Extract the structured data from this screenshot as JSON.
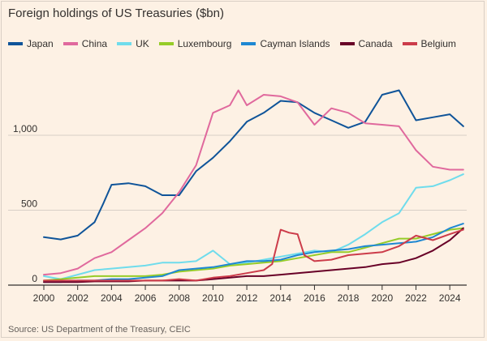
{
  "chart_data": {
    "type": "line",
    "title": "Foreign holdings of US Treasuries ($bn)",
    "source": "Source: US Department of the Treasury, CEIC",
    "xlabel": "",
    "ylabel": "",
    "xlim": [
      2000,
      2025
    ],
    "ylim": [
      0,
      1000
    ],
    "x_ticks": [
      2000,
      2002,
      2004,
      2006,
      2008,
      2010,
      2012,
      2014,
      2016,
      2018,
      2020,
      2022,
      2024
    ],
    "y_ticks": [
      0,
      500,
      1000
    ],
    "y_tick_labels": [
      "0",
      "500",
      "1,000"
    ],
    "grid": true,
    "legend_position": "top-left",
    "series": [
      {
        "name": "Japan",
        "color": "#0f5499",
        "points": [
          [
            2000,
            320
          ],
          [
            2001,
            305
          ],
          [
            2002,
            330
          ],
          [
            2003,
            420
          ],
          [
            2003.5,
            540
          ],
          [
            2004,
            670
          ],
          [
            2005,
            680
          ],
          [
            2006,
            660
          ],
          [
            2007,
            600
          ],
          [
            2008,
            600
          ],
          [
            2009,
            760
          ],
          [
            2010,
            850
          ],
          [
            2011,
            960
          ],
          [
            2012,
            1090
          ],
          [
            2013,
            1150
          ],
          [
            2014,
            1230
          ],
          [
            2015,
            1220
          ],
          [
            2016,
            1150
          ],
          [
            2017,
            1100
          ],
          [
            2018,
            1050
          ],
          [
            2019,
            1090
          ],
          [
            2020,
            1270
          ],
          [
            2021,
            1300
          ],
          [
            2022,
            1100
          ],
          [
            2023,
            1120
          ],
          [
            2024,
            1140
          ],
          [
            2024.8,
            1060
          ]
        ]
      },
      {
        "name": "China",
        "color": "#e0699d",
        "points": [
          [
            2000,
            70
          ],
          [
            2001,
            80
          ],
          [
            2002,
            110
          ],
          [
            2003,
            180
          ],
          [
            2004,
            220
          ],
          [
            2005,
            300
          ],
          [
            2006,
            380
          ],
          [
            2007,
            480
          ],
          [
            2008,
            620
          ],
          [
            2009,
            800
          ],
          [
            2010,
            1150
          ],
          [
            2011,
            1200
          ],
          [
            2011.5,
            1300
          ],
          [
            2012,
            1200
          ],
          [
            2013,
            1270
          ],
          [
            2014,
            1260
          ],
          [
            2015,
            1220
          ],
          [
            2016,
            1070
          ],
          [
            2017,
            1180
          ],
          [
            2018,
            1150
          ],
          [
            2019,
            1080
          ],
          [
            2020,
            1070
          ],
          [
            2021,
            1060
          ],
          [
            2022,
            900
          ],
          [
            2023,
            790
          ],
          [
            2024,
            770
          ],
          [
            2024.8,
            770
          ]
        ]
      },
      {
        "name": "UK",
        "color": "#6fdcec",
        "points": [
          [
            2000,
            60
          ],
          [
            2001,
            40
          ],
          [
            2002,
            70
          ],
          [
            2003,
            100
          ],
          [
            2004,
            110
          ],
          [
            2005,
            120
          ],
          [
            2006,
            130
          ],
          [
            2007,
            150
          ],
          [
            2008,
            150
          ],
          [
            2009,
            160
          ],
          [
            2010,
            230
          ],
          [
            2011,
            140
          ],
          [
            2012,
            150
          ],
          [
            2013,
            170
          ],
          [
            2014,
            190
          ],
          [
            2015,
            210
          ],
          [
            2016,
            230
          ],
          [
            2017,
            220
          ],
          [
            2018,
            270
          ],
          [
            2019,
            340
          ],
          [
            2020,
            420
          ],
          [
            2021,
            480
          ],
          [
            2022,
            650
          ],
          [
            2023,
            660
          ],
          [
            2024,
            700
          ],
          [
            2024.8,
            740
          ]
        ]
      },
      {
        "name": "Luxembourg",
        "color": "#96cc28",
        "points": [
          [
            2000,
            30
          ],
          [
            2001,
            40
          ],
          [
            2002,
            50
          ],
          [
            2003,
            60
          ],
          [
            2004,
            60
          ],
          [
            2005,
            60
          ],
          [
            2006,
            60
          ],
          [
            2007,
            70
          ],
          [
            2008,
            90
          ],
          [
            2009,
            100
          ],
          [
            2010,
            110
          ],
          [
            2011,
            130
          ],
          [
            2012,
            140
          ],
          [
            2013,
            150
          ],
          [
            2014,
            160
          ],
          [
            2015,
            180
          ],
          [
            2016,
            200
          ],
          [
            2017,
            220
          ],
          [
            2018,
            220
          ],
          [
            2019,
            250
          ],
          [
            2020,
            280
          ],
          [
            2021,
            310
          ],
          [
            2022,
            310
          ],
          [
            2023,
            340
          ],
          [
            2024,
            370
          ],
          [
            2024.8,
            380
          ]
        ]
      },
      {
        "name": "Cayman Islands",
        "color": "#1e88d2",
        "points": [
          [
            2000,
            20
          ],
          [
            2001,
            20
          ],
          [
            2002,
            30
          ],
          [
            2003,
            30
          ],
          [
            2004,
            40
          ],
          [
            2005,
            40
          ],
          [
            2006,
            50
          ],
          [
            2007,
            60
          ],
          [
            2008,
            100
          ],
          [
            2009,
            110
          ],
          [
            2010,
            120
          ],
          [
            2011,
            140
          ],
          [
            2012,
            160
          ],
          [
            2013,
            160
          ],
          [
            2014,
            170
          ],
          [
            2015,
            200
          ],
          [
            2016,
            220
          ],
          [
            2017,
            230
          ],
          [
            2018,
            240
          ],
          [
            2019,
            260
          ],
          [
            2020,
            270
          ],
          [
            2021,
            280
          ],
          [
            2022,
            290
          ],
          [
            2023,
            320
          ],
          [
            2024,
            380
          ],
          [
            2024.8,
            410
          ]
        ]
      },
      {
        "name": "Canada",
        "color": "#680027",
        "points": [
          [
            2000,
            20
          ],
          [
            2001,
            20
          ],
          [
            2002,
            20
          ],
          [
            2003,
            25
          ],
          [
            2004,
            25
          ],
          [
            2005,
            25
          ],
          [
            2006,
            30
          ],
          [
            2007,
            30
          ],
          [
            2008,
            30
          ],
          [
            2009,
            30
          ],
          [
            2010,
            40
          ],
          [
            2011,
            50
          ],
          [
            2012,
            60
          ],
          [
            2013,
            60
          ],
          [
            2014,
            70
          ],
          [
            2015,
            80
          ],
          [
            2016,
            90
          ],
          [
            2017,
            100
          ],
          [
            2018,
            110
          ],
          [
            2019,
            120
          ],
          [
            2020,
            140
          ],
          [
            2021,
            150
          ],
          [
            2022,
            180
          ],
          [
            2023,
            230
          ],
          [
            2024,
            300
          ],
          [
            2024.8,
            380
          ]
        ]
      },
      {
        "name": "Belgium",
        "color": "#cc3c4a",
        "points": [
          [
            2000,
            30
          ],
          [
            2001,
            30
          ],
          [
            2002,
            30
          ],
          [
            2003,
            30
          ],
          [
            2004,
            30
          ],
          [
            2005,
            30
          ],
          [
            2006,
            30
          ],
          [
            2007,
            30
          ],
          [
            2008,
            40
          ],
          [
            2009,
            30
          ],
          [
            2010,
            50
          ],
          [
            2011,
            60
          ],
          [
            2012,
            80
          ],
          [
            2013,
            100
          ],
          [
            2013.5,
            140
          ],
          [
            2014,
            370
          ],
          [
            2014.5,
            350
          ],
          [
            2015,
            340
          ],
          [
            2015.4,
            200
          ],
          [
            2016,
            160
          ],
          [
            2017,
            170
          ],
          [
            2018,
            200
          ],
          [
            2019,
            210
          ],
          [
            2020,
            220
          ],
          [
            2021,
            260
          ],
          [
            2022,
            330
          ],
          [
            2023,
            300
          ],
          [
            2024,
            340
          ],
          [
            2024.8,
            370
          ]
        ]
      }
    ]
  }
}
